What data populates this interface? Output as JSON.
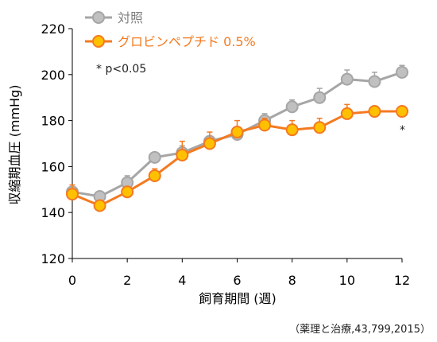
{
  "chart_data": {
    "type": "line",
    "x": [
      0,
      1,
      2,
      3,
      4,
      5,
      6,
      7,
      8,
      9,
      10,
      11,
      12
    ],
    "xlabel": "飼育期間 (週)",
    "ylabel": "収縮期血圧 (mmHg)",
    "xlim": [
      0,
      12
    ],
    "ylim": [
      120,
      220
    ],
    "xticks": [
      "0",
      "2",
      "4",
      "6",
      "8",
      "10",
      "12"
    ],
    "yticks": [
      "120",
      "140",
      "160",
      "180",
      "200",
      "220"
    ],
    "grid": false,
    "legend_position": "top-left",
    "series": [
      {
        "name": "対照",
        "color": "#a6a6a6",
        "marker_fill": "#c0c0c0",
        "values": [
          149,
          147,
          153,
          164,
          166,
          171,
          174,
          180,
          186,
          190,
          198,
          197,
          201
        ],
        "error": [
          2,
          2,
          3,
          2,
          3,
          2,
          3,
          3,
          3,
          4,
          4,
          4,
          3
        ]
      },
      {
        "name": "グロビンペプチド 0.5%",
        "color": "#f47a20",
        "marker_fill": "#ffc000",
        "values": [
          148,
          143,
          149,
          156,
          165,
          170,
          175,
          178,
          176,
          177,
          183,
          184,
          184
        ],
        "error": [
          4,
          2,
          2,
          3,
          6,
          5,
          5,
          3,
          4,
          4,
          4,
          2,
          2
        ]
      }
    ],
    "annotations": {
      "significance_note": "* p<0.05",
      "significance_mark": "*",
      "significance_mark_x": 12
    },
    "source": "（薬理と治療,43,799,2015）"
  }
}
